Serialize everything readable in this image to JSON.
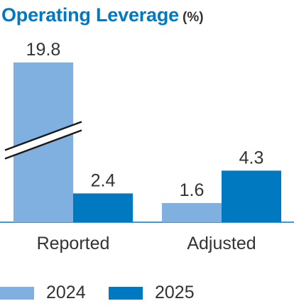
{
  "header": {
    "title": "Operating Leverage",
    "unit": "(%)"
  },
  "colors": {
    "series_2024": "#7fb0df",
    "series_2025": "#0079c1",
    "title": "#0079c1",
    "axis": "#0079c1",
    "text": "#333333"
  },
  "chart_data": {
    "type": "bar",
    "title": "Operating Leverage",
    "unit": "(%)",
    "categories": [
      "Reported",
      "Adjusted"
    ],
    "series": [
      {
        "name": "2024",
        "values": [
          19.8,
          1.6
        ],
        "labels": [
          "19.8",
          "1.6"
        ]
      },
      {
        "name": "2025",
        "values": [
          2.4,
          4.3
        ],
        "labels": [
          "2.4",
          "4.3"
        ]
      }
    ],
    "axis_break": true,
    "legend_position": "bottom",
    "grid": false
  },
  "legend": {
    "items": [
      {
        "label": "2024"
      },
      {
        "label": "2025"
      }
    ]
  }
}
